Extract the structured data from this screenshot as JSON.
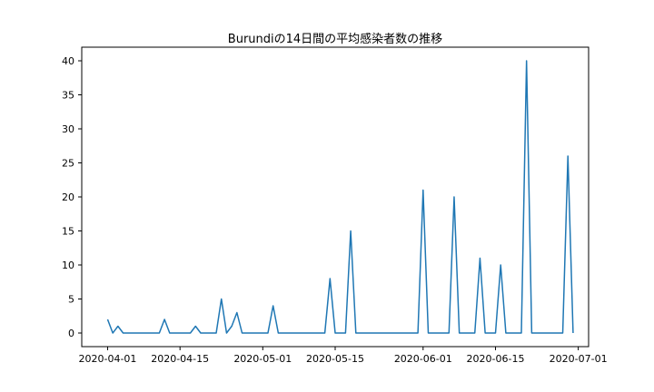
{
  "chart_data": {
    "type": "line",
    "title": "Burundiの14日間の平均感染者数の推移",
    "xlabel": "",
    "ylabel": "",
    "x_axis": "date",
    "xlim": [
      "2020-03-27",
      "2020-07-03"
    ],
    "ylim": [
      -2,
      42
    ],
    "x_ticks": [
      "2020-04-01",
      "2020-04-15",
      "2020-05-01",
      "2020-05-15",
      "2020-06-01",
      "2020-06-15",
      "2020-07-01"
    ],
    "y_ticks": [
      0,
      5,
      10,
      15,
      20,
      25,
      30,
      35,
      40
    ],
    "series": [
      {
        "color": "#1f77b4",
        "points": [
          [
            "2020-04-01",
            2
          ],
          [
            "2020-04-02",
            0
          ],
          [
            "2020-04-03",
            1
          ],
          [
            "2020-04-04",
            0
          ],
          [
            "2020-04-05",
            0
          ],
          [
            "2020-04-06",
            0
          ],
          [
            "2020-04-07",
            0
          ],
          [
            "2020-04-08",
            0
          ],
          [
            "2020-04-09",
            0
          ],
          [
            "2020-04-10",
            0
          ],
          [
            "2020-04-11",
            0
          ],
          [
            "2020-04-12",
            2
          ],
          [
            "2020-04-13",
            0
          ],
          [
            "2020-04-14",
            0
          ],
          [
            "2020-04-15",
            0
          ],
          [
            "2020-04-16",
            0
          ],
          [
            "2020-04-17",
            0
          ],
          [
            "2020-04-18",
            1
          ],
          [
            "2020-04-19",
            0
          ],
          [
            "2020-04-20",
            0
          ],
          [
            "2020-04-21",
            0
          ],
          [
            "2020-04-22",
            0
          ],
          [
            "2020-04-23",
            5
          ],
          [
            "2020-04-24",
            0
          ],
          [
            "2020-04-25",
            1
          ],
          [
            "2020-04-26",
            3
          ],
          [
            "2020-04-27",
            0
          ],
          [
            "2020-04-28",
            0
          ],
          [
            "2020-04-29",
            0
          ],
          [
            "2020-04-30",
            0
          ],
          [
            "2020-05-01",
            0
          ],
          [
            "2020-05-02",
            0
          ],
          [
            "2020-05-03",
            4
          ],
          [
            "2020-05-04",
            0
          ],
          [
            "2020-05-13",
            0
          ],
          [
            "2020-05-14",
            8
          ],
          [
            "2020-05-15",
            0
          ],
          [
            "2020-05-17",
            0
          ],
          [
            "2020-05-18",
            15
          ],
          [
            "2020-05-19",
            0
          ],
          [
            "2020-05-31",
            0
          ],
          [
            "2020-06-01",
            21
          ],
          [
            "2020-06-02",
            0
          ],
          [
            "2020-06-06",
            0
          ],
          [
            "2020-06-07",
            20
          ],
          [
            "2020-06-08",
            0
          ],
          [
            "2020-06-11",
            0
          ],
          [
            "2020-06-12",
            11
          ],
          [
            "2020-06-13",
            0
          ],
          [
            "2020-06-15",
            0
          ],
          [
            "2020-06-16",
            10
          ],
          [
            "2020-06-17",
            0
          ],
          [
            "2020-06-20",
            0
          ],
          [
            "2020-06-21",
            40
          ],
          [
            "2020-06-22",
            0
          ],
          [
            "2020-06-28",
            0
          ],
          [
            "2020-06-29",
            26
          ],
          [
            "2020-06-30",
            0
          ]
        ]
      }
    ],
    "grid": false,
    "legend": "none"
  }
}
